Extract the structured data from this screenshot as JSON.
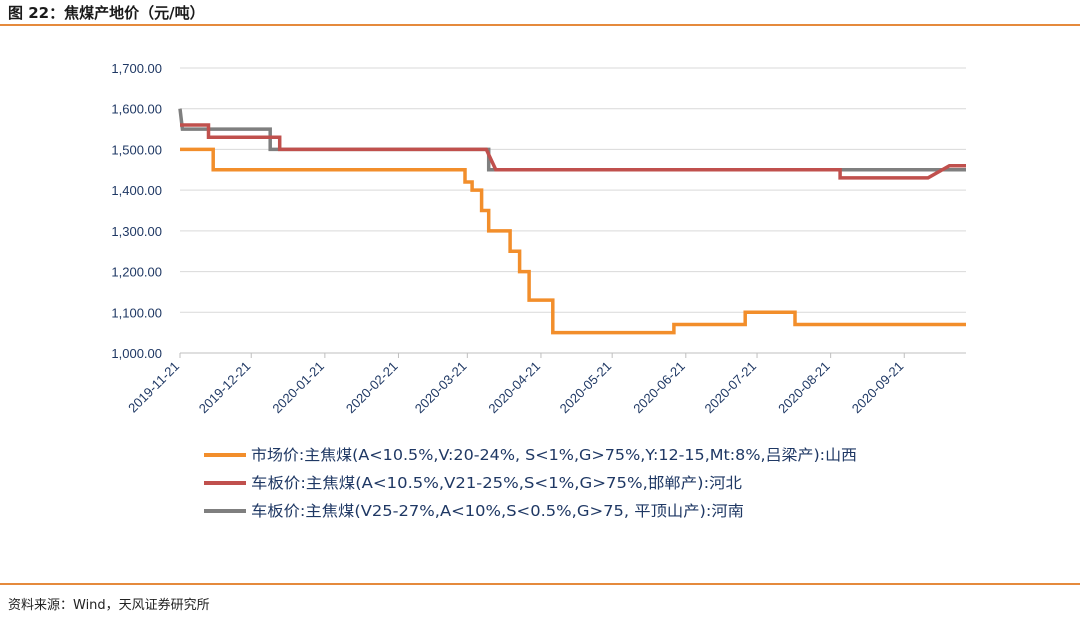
{
  "header": {
    "title": "图 22：焦煤产地价（元/吨）"
  },
  "footer": {
    "source": "资料来源：Wind，天风证券研究所"
  },
  "chart_data": {
    "type": "line",
    "title": "焦煤产地价（元/吨）",
    "ylim": [
      1000,
      1700
    ],
    "y_ticks": [
      "1,000.00",
      "1,100.00",
      "1,200.00",
      "1,300.00",
      "1,400.00",
      "1,500.00",
      "1,600.00",
      "1,700.00"
    ],
    "x_range": [
      "2019-11-21",
      "2020-10-17"
    ],
    "x_ticks": [
      "2019-11-21",
      "2019-12-21",
      "2020-01-21",
      "2020-02-21",
      "2020-03-21",
      "2020-04-21",
      "2020-05-21",
      "2020-06-21",
      "2020-07-21",
      "2020-08-21",
      "2020-09-21"
    ],
    "grid": true,
    "legend": "bottom",
    "series": [
      {
        "name": "市场价:主焦煤(A<10.5%,V:20-24%, S<1%,G>75%,Y:12-15,Mt:8%,吕梁产):山西",
        "color": "#f28e2b",
        "points": [
          [
            "2019-11-21",
            1500
          ],
          [
            "2019-12-05",
            1500
          ],
          [
            "2019-12-05",
            1450
          ],
          [
            "2020-03-20",
            1450
          ],
          [
            "2020-03-20",
            1420
          ],
          [
            "2020-03-23",
            1420
          ],
          [
            "2020-03-23",
            1400
          ],
          [
            "2020-03-27",
            1400
          ],
          [
            "2020-03-27",
            1350
          ],
          [
            "2020-03-30",
            1350
          ],
          [
            "2020-03-30",
            1300
          ],
          [
            "2020-04-08",
            1300
          ],
          [
            "2020-04-08",
            1250
          ],
          [
            "2020-04-12",
            1250
          ],
          [
            "2020-04-12",
            1200
          ],
          [
            "2020-04-16",
            1200
          ],
          [
            "2020-04-16",
            1130
          ],
          [
            "2020-04-26",
            1130
          ],
          [
            "2020-04-26",
            1050
          ],
          [
            "2020-06-16",
            1050
          ],
          [
            "2020-06-16",
            1070
          ],
          [
            "2020-07-16",
            1070
          ],
          [
            "2020-07-16",
            1100
          ],
          [
            "2020-08-06",
            1100
          ],
          [
            "2020-08-06",
            1070
          ],
          [
            "2020-10-17",
            1070
          ]
        ]
      },
      {
        "name": "车板价:主焦煤(A<10.5%,V21-25%,S<1%,G>75%,邯郸产):河北",
        "color": "#c0504d",
        "points": [
          [
            "2019-11-21",
            1560
          ],
          [
            "2019-12-03",
            1560
          ],
          [
            "2019-12-03",
            1530
          ],
          [
            "2020-01-02",
            1530
          ],
          [
            "2020-01-02",
            1500
          ],
          [
            "2020-03-29",
            1500
          ],
          [
            "2020-04-02",
            1450
          ],
          [
            "2020-08-25",
            1450
          ],
          [
            "2020-08-25",
            1430
          ],
          [
            "2020-10-01",
            1430
          ],
          [
            "2020-10-10",
            1460
          ],
          [
            "2020-10-17",
            1460
          ]
        ]
      },
      {
        "name": "车板价:主焦煤(V25-27%,A<10%,S<0.5%,G>75, 平顶山产):河南",
        "color": "#7f7f7f",
        "points": [
          [
            "2019-11-21",
            1600
          ],
          [
            "2019-11-22",
            1550
          ],
          [
            "2019-12-29",
            1550
          ],
          [
            "2019-12-29",
            1500
          ],
          [
            "2020-03-30",
            1500
          ],
          [
            "2020-03-30",
            1450
          ],
          [
            "2020-10-17",
            1450
          ]
        ]
      }
    ]
  }
}
